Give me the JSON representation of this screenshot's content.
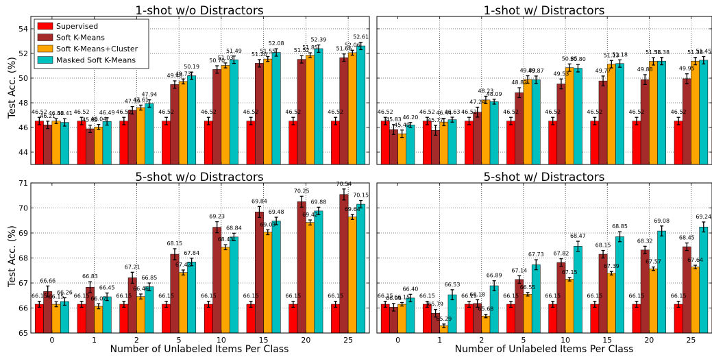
{
  "chart_data": [
    {
      "type": "bar",
      "title": "1-shot w/o Distractors",
      "xlabel": "",
      "ylabel": "Test Acc. (%)",
      "categories": [
        "0",
        "1",
        "2",
        "5",
        "10",
        "15",
        "20",
        "25"
      ],
      "ylim": [
        43,
        55
      ],
      "yticks": [
        44,
        46,
        48,
        50,
        52,
        54
      ],
      "grid": true,
      "legend": "top-left",
      "series": [
        {
          "name": "Supervised",
          "color": "#ff0000",
          "values": [
            46.52,
            46.52,
            46.52,
            46.52,
            46.52,
            46.52,
            46.52,
            46.52
          ],
          "errors": [
            0.3,
            0.3,
            0.3,
            0.3,
            0.3,
            0.3,
            0.3,
            0.3
          ],
          "labels": [
            "46.52",
            "46.52",
            "46.52",
            "46.52",
            "46.52",
            "46.52",
            "46.52",
            "46.52"
          ]
        },
        {
          "name": "Soft K-Means",
          "color": "#a52a2a",
          "values": [
            46.21,
            45.89,
            47.39,
            49.48,
            50.7,
            51.2,
            51.52,
            51.66
          ],
          "errors": [
            0.3,
            0.3,
            0.3,
            0.3,
            0.3,
            0.3,
            0.3,
            0.3
          ],
          "labels": [
            "46.21",
            "45.89",
            "47.39",
            "49.48",
            "50.70",
            "51.20",
            "51.52",
            "51.66"
          ]
        },
        {
          "name": "Soft K-Means+Cluster",
          "color": "#ffa500",
          "values": [
            46.52,
            46.04,
            47.61,
            49.73,
            51.03,
            51.55,
            51.85,
            52.06
          ],
          "errors": [
            0.2,
            0.2,
            0.2,
            0.2,
            0.2,
            0.2,
            0.2,
            0.2
          ],
          "labels": [
            "46.52",
            "46.04",
            "47.61",
            "49.73",
            "51.03",
            "51.55",
            "51.85",
            "52.06"
          ]
        },
        {
          "name": "Masked Soft K-Means",
          "color": "#00bfbf",
          "values": [
            46.41,
            46.49,
            47.94,
            50.19,
            51.49,
            52.08,
            52.39,
            52.61
          ],
          "errors": [
            0.3,
            0.3,
            0.3,
            0.3,
            0.3,
            0.3,
            0.3,
            0.3
          ],
          "labels": [
            "46.41",
            "46.49",
            "47.94",
            "50.19",
            "51.49",
            "52.08",
            "52.39",
            "52.61"
          ]
        }
      ]
    },
    {
      "type": "bar",
      "title": "1-shot w/ Distractors",
      "xlabel": "",
      "ylabel": "",
      "categories": [
        "0",
        "1",
        "2",
        "5",
        "10",
        "15",
        "20",
        "25"
      ],
      "ylim": [
        43,
        55
      ],
      "yticks": [
        44,
        46,
        48,
        50,
        52,
        54
      ],
      "grid": true,
      "series": [
        {
          "name": "Supervised",
          "color": "#ff0000",
          "values": [
            46.52,
            46.52,
            46.52,
            46.52,
            46.52,
            46.52,
            46.52,
            46.52
          ],
          "errors": [
            0.3,
            0.3,
            0.3,
            0.3,
            0.3,
            0.3,
            0.3,
            0.3
          ],
          "labels": [
            "46.52",
            "46.52",
            "46.52",
            "46.52",
            "46.52",
            "46.52",
            "46.52",
            "46.52"
          ]
        },
        {
          "name": "Soft K-Means",
          "color": "#a52a2a",
          "values": [
            45.83,
            45.77,
            47.24,
            48.82,
            49.53,
            49.77,
            49.88,
            49.95
          ],
          "errors": [
            0.4,
            0.4,
            0.4,
            0.4,
            0.4,
            0.4,
            0.4,
            0.4
          ],
          "labels": [
            "45.83",
            "45.77",
            "47.24",
            "48.82",
            "49.53",
            "49.77",
            "49.88",
            "49.95"
          ]
        },
        {
          "name": "Soft K-Means+Cluster",
          "color": "#ffa500",
          "values": [
            45.49,
            46.44,
            48.23,
            49.89,
            50.85,
            51.13,
            51.36,
            51.38
          ],
          "errors": [
            0.3,
            0.3,
            0.3,
            0.3,
            0.3,
            0.3,
            0.3,
            0.3
          ],
          "labels": [
            "45.49",
            "46.44",
            "48.23",
            "49.89",
            "50.85",
            "51.13",
            "51.36",
            "51.38"
          ]
        },
        {
          "name": "Masked Soft K-Means",
          "color": "#00bfbf",
          "values": [
            46.2,
            46.63,
            48.09,
            49.87,
            50.8,
            51.18,
            51.38,
            51.45
          ],
          "errors": [
            0.2,
            0.2,
            0.2,
            0.3,
            0.3,
            0.3,
            0.3,
            0.3
          ],
          "labels": [
            "46.20",
            "46.63",
            "48.09",
            "49.87",
            "50.80",
            "51.18",
            "51.38",
            "51.45"
          ]
        }
      ]
    },
    {
      "type": "bar",
      "title": "5-shot w/o Distractors",
      "xlabel": "Number of Unlabeled Items Per Class",
      "ylabel": "Test Acc. (%)",
      "categories": [
        "0",
        "1",
        "2",
        "5",
        "10",
        "15",
        "20",
        "25"
      ],
      "ylim": [
        65,
        71
      ],
      "yticks": [
        65,
        66,
        67,
        68,
        69,
        70,
        71
      ],
      "grid": true,
      "series": [
        {
          "name": "Supervised",
          "color": "#ff0000",
          "values": [
            66.15,
            66.15,
            66.15,
            66.15,
            66.15,
            66.15,
            66.15,
            66.15
          ],
          "errors": [
            0.12,
            0.12,
            0.12,
            0.12,
            0.12,
            0.12,
            0.12,
            0.12
          ],
          "labels": [
            "66.15",
            "66.15",
            "66.15",
            "66.15",
            "66.15",
            "66.15",
            "66.15",
            "66.15"
          ]
        },
        {
          "name": "Soft K-Means",
          "color": "#a52a2a",
          "values": [
            66.66,
            66.83,
            67.21,
            68.15,
            69.23,
            69.84,
            70.25,
            70.54
          ],
          "errors": [
            0.22,
            0.22,
            0.22,
            0.22,
            0.22,
            0.22,
            0.22,
            0.22
          ],
          "labels": [
            "66.66",
            "66.83",
            "67.21",
            "68.15",
            "69.23",
            "69.84",
            "70.25",
            "70.54"
          ]
        },
        {
          "name": "Soft K-Means+Cluster",
          "color": "#ffa500",
          "values": [
            66.15,
            66.07,
            66.46,
            67.42,
            68.43,
            69.03,
            69.42,
            69.64
          ],
          "errors": [
            0.1,
            0.1,
            0.1,
            0.1,
            0.1,
            0.1,
            0.1,
            0.1
          ],
          "labels": [
            "66.15",
            "66.07",
            "66.46",
            "67.42",
            "68.43",
            "69.03",
            "69.42",
            "69.64"
          ]
        },
        {
          "name": "Masked Soft K-Means",
          "color": "#00bfbf",
          "values": [
            66.26,
            66.45,
            66.85,
            67.84,
            68.84,
            69.48,
            69.88,
            70.15
          ],
          "errors": [
            0.15,
            0.15,
            0.15,
            0.15,
            0.15,
            0.15,
            0.15,
            0.15
          ],
          "labels": [
            "66.26",
            "66.45",
            "66.85",
            "67.84",
            "68.84",
            "69.48",
            "69.88",
            "70.15"
          ]
        }
      ]
    },
    {
      "type": "bar",
      "title": "5-shot w/ Distractors",
      "xlabel": "Number of Unlabeled Items Per Class",
      "ylabel": "",
      "categories": [
        "0",
        "1",
        "2",
        "5",
        "10",
        "15",
        "20",
        "25"
      ],
      "ylim": [
        65,
        71
      ],
      "yticks": [
        65,
        66,
        67,
        68,
        69,
        70,
        71
      ],
      "grid": true,
      "series": [
        {
          "name": "Supervised",
          "color": "#ff0000",
          "values": [
            66.15,
            66.15,
            66.15,
            66.15,
            66.15,
            66.15,
            66.15,
            66.15
          ],
          "errors": [
            0.12,
            0.12,
            0.12,
            0.12,
            0.12,
            0.12,
            0.12,
            0.12
          ],
          "labels": [
            "66.15",
            "66.15",
            "66.15",
            "66.15",
            "66.15",
            "66.15",
            "66.15",
            "66.15"
          ]
        },
        {
          "name": "Soft K-Means",
          "color": "#a52a2a",
          "values": [
            66.03,
            65.79,
            66.18,
            67.14,
            67.82,
            68.15,
            68.32,
            68.45
          ],
          "errors": [
            0.15,
            0.15,
            0.15,
            0.15,
            0.15,
            0.15,
            0.15,
            0.15
          ],
          "labels": [
            "66.03",
            "65.79",
            "66.18",
            "67.14",
            "67.82",
            "68.15",
            "68.32",
            "68.45"
          ]
        },
        {
          "name": "Soft K-Means+Cluster",
          "color": "#ffa500",
          "values": [
            66.15,
            65.29,
            65.68,
            66.55,
            67.15,
            67.39,
            67.57,
            67.64
          ],
          "errors": [
            0.07,
            0.07,
            0.07,
            0.07,
            0.07,
            0.07,
            0.07,
            0.07
          ],
          "labels": [
            "66.15",
            "65.29",
            "65.68",
            "66.55",
            "67.15",
            "67.39",
            "67.57",
            "67.64"
          ]
        },
        {
          "name": "Masked Soft K-Means",
          "color": "#00bfbf",
          "values": [
            66.4,
            66.53,
            66.89,
            67.73,
            68.47,
            68.85,
            69.08,
            69.24
          ],
          "errors": [
            0.15,
            0.2,
            0.2,
            0.2,
            0.2,
            0.2,
            0.2,
            0.2
          ],
          "labels": [
            "66.40",
            "66.53",
            "66.89",
            "67.73",
            "68.47",
            "68.85",
            "69.08",
            "69.24"
          ]
        }
      ]
    }
  ]
}
